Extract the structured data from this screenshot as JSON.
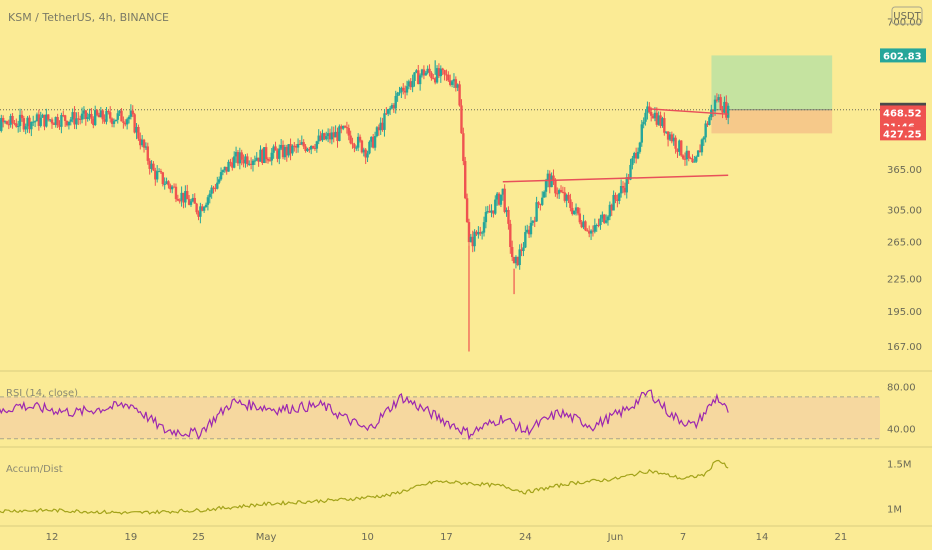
{
  "header": {
    "symbol_line": "KSM / TetherUS, 4h, BINANCE",
    "currency_button": "USDT"
  },
  "colors": {
    "background": "#fbeb95",
    "up_candle": "#26a69a",
    "down_candle": "#ef5350",
    "rsi_line": "#9c27b0",
    "rsi_band": "#f5d6a0",
    "ad_line": "#a3a31a",
    "trend_line": "#e8505a",
    "target_zone": "#c5e3a0",
    "stop_zone": "#f6c98a"
  },
  "chart_data": [
    {
      "type": "candlestick",
      "pane": "price",
      "title": "KSM / TetherUS, 4h, BINANCE",
      "y_scale": "log",
      "ylim": [
        150,
        700
      ],
      "y_ticks": [
        700,
        474.16,
        365,
        305,
        265,
        225,
        195,
        167
      ],
      "y_tick_labels": [
        "700.00",
        "474.16",
        "365.00",
        "305.00",
        "265.00",
        "225.00",
        "195.00",
        "167.00"
      ],
      "x_tick_labels": [
        "12",
        "19",
        "25",
        "May",
        "10",
        "17",
        "24",
        "Jun",
        "7",
        "14",
        "21"
      ],
      "x_tick_dates": [
        "2021-04-12",
        "2021-04-19",
        "2021-04-25",
        "2021-05-01",
        "2021-05-10",
        "2021-05-17",
        "2021-05-24",
        "2021-06-01",
        "2021-06-07",
        "2021-06-14",
        "2021-06-21"
      ],
      "key_points": [
        {
          "date": "2021-04-05",
          "close": 440
        },
        {
          "date": "2021-04-12",
          "close": 455
        },
        {
          "date": "2021-04-19",
          "close": 460
        },
        {
          "date": "2021-04-21",
          "close": 360
        },
        {
          "date": "2021-04-25",
          "close": 305
        },
        {
          "date": "2021-04-28",
          "close": 380
        },
        {
          "date": "2021-05-03",
          "close": 395
        },
        {
          "date": "2021-05-08",
          "close": 430
        },
        {
          "date": "2021-05-10",
          "close": 395
        },
        {
          "date": "2021-05-13",
          "close": 520
        },
        {
          "date": "2021-05-15",
          "close": 560
        },
        {
          "date": "2021-05-18",
          "close": 540
        },
        {
          "date": "2021-05-19",
          "close": 260
        },
        {
          "date": "2021-05-22",
          "close": 330
        },
        {
          "date": "2021-05-23",
          "close": 235
        },
        {
          "date": "2021-05-26",
          "close": 350
        },
        {
          "date": "2021-05-30",
          "close": 275
        },
        {
          "date": "2021-06-02",
          "close": 345
        },
        {
          "date": "2021-06-04",
          "close": 480
        },
        {
          "date": "2021-06-06",
          "close": 420
        },
        {
          "date": "2021-06-08",
          "close": 365
        },
        {
          "date": "2021-06-09",
          "close": 440
        },
        {
          "date": "2021-06-10",
          "close": 500
        },
        {
          "date": "2021-06-11",
          "close": 468.52
        }
      ],
      "wick_extremes": [
        {
          "date": "2021-05-19",
          "low": 163
        },
        {
          "date": "2021-05-23",
          "low": 210
        },
        {
          "date": "2021-05-16",
          "high": 590
        }
      ],
      "price_tags": [
        {
          "value": 602.83,
          "label": "602.83",
          "color": "#26a69a"
        },
        {
          "value": 474.16,
          "label": "474.16",
          "color": "#4a4a4a"
        },
        {
          "value": 468.52,
          "label": "468.52",
          "color": "#ef5350"
        },
        {
          "value": 468.52,
          "label": "21:46",
          "color": "#ef5350",
          "countdown": true
        },
        {
          "value": 427.25,
          "label": "427.25",
          "color": "#ef5350"
        }
      ],
      "reference_line": 474.16,
      "trend_lines": [
        {
          "from": {
            "date": "2021-06-04",
            "value": 476
          },
          "to": {
            "date": "2021-06-11",
            "value": 465
          }
        },
        {
          "from": {
            "date": "2021-05-22",
            "value": 345
          },
          "to": {
            "date": "2021-06-11",
            "value": 355
          }
        }
      ],
      "position_zone": {
        "entry": 474.16,
        "target": 602.83,
        "stop": 427.25,
        "start_date": "2021-06-12",
        "end_date": "2021-06-22"
      }
    },
    {
      "type": "line",
      "pane": "rsi",
      "title": "RSI (14, close)",
      "ylim": [
        25,
        90
      ],
      "band": [
        30,
        70
      ],
      "y_tick_labels": [
        "80.00",
        "40.00"
      ],
      "y_ticks": [
        80,
        40
      ],
      "series": [
        {
          "name": "RSI (14, close)",
          "x": [
            "2021-04-05",
            "2021-04-09",
            "2021-04-14",
            "2021-04-19",
            "2021-04-22",
            "2021-04-25",
            "2021-04-28",
            "2021-05-02",
            "2021-05-06",
            "2021-05-10",
            "2021-05-13",
            "2021-05-16",
            "2021-05-19",
            "2021-05-22",
            "2021-05-24",
            "2021-05-27",
            "2021-05-30",
            "2021-06-02",
            "2021-06-04",
            "2021-06-06",
            "2021-06-08",
            "2021-06-10",
            "2021-06-11"
          ],
          "values": [
            45,
            62,
            55,
            63,
            38,
            35,
            65,
            58,
            62,
            38,
            70,
            52,
            35,
            50,
            37,
            55,
            42,
            58,
            75,
            52,
            42,
            70,
            55
          ]
        }
      ]
    },
    {
      "type": "line",
      "pane": "accum_dist",
      "title": "Accum/Dist",
      "y_tick_labels": [
        "1.5M",
        "1M"
      ],
      "y_ticks": [
        1.5,
        1.0
      ],
      "ylim": [
        0.85,
        1.65
      ],
      "series": [
        {
          "name": "Accum/Dist",
          "x": [
            "2021-04-05",
            "2021-04-12",
            "2021-04-19",
            "2021-04-25",
            "2021-05-01",
            "2021-05-08",
            "2021-05-12",
            "2021-05-16",
            "2021-05-19",
            "2021-05-22",
            "2021-05-24",
            "2021-05-28",
            "2021-06-01",
            "2021-06-04",
            "2021-06-07",
            "2021-06-09",
            "2021-06-10",
            "2021-06-11"
          ],
          "values": [
            0.97,
            0.98,
            0.95,
            0.98,
            1.05,
            1.1,
            1.15,
            1.3,
            1.28,
            1.25,
            1.18,
            1.28,
            1.33,
            1.42,
            1.33,
            1.38,
            1.55,
            1.45
          ]
        }
      ]
    }
  ]
}
